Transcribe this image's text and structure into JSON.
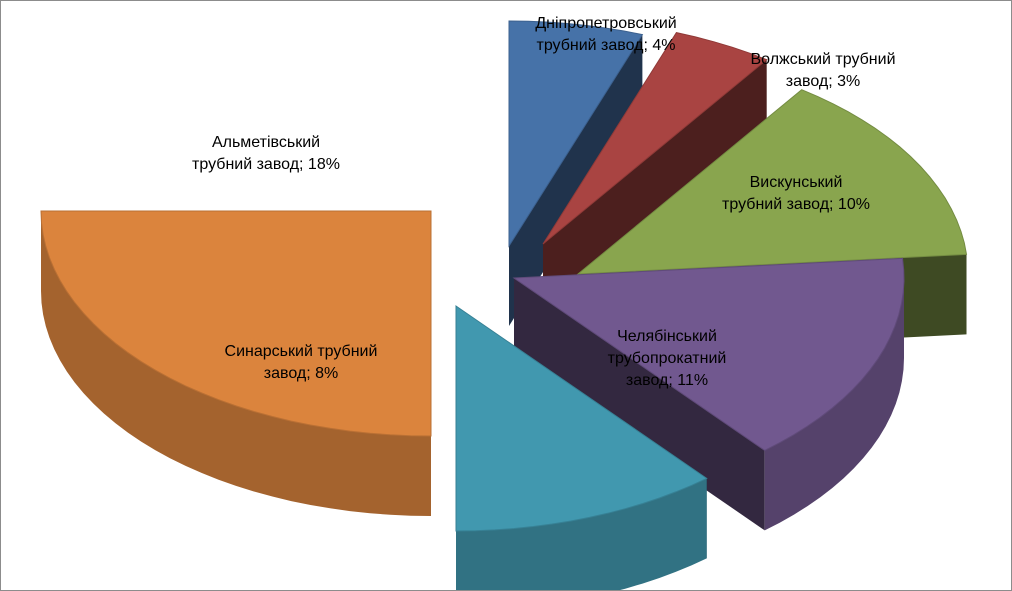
{
  "chart_data": {
    "type": "pie",
    "title": "",
    "subtitle": "",
    "legend": "none",
    "three_d": true,
    "exploded": true,
    "slices": [
      {
        "name": "Дніпропетровський трубний завод",
        "value": 4,
        "label_lines": [
          "Дніпропетровський",
          "трубний завод; 4%"
        ],
        "color": "#4672a8"
      },
      {
        "name": "Волжський трубний завод",
        "value": 3,
        "label_lines": [
          "Волжський трубний",
          "завод; 3%"
        ],
        "color": "#a94442"
      },
      {
        "name": "Вискунський трубний завод",
        "value": 10,
        "label_lines": [
          "Вискунський",
          "трубний завод; 10%"
        ],
        "color": "#89a54e"
      },
      {
        "name": "Челябінський трубопрокатний завод",
        "value": 11,
        "label_lines": [
          "Челябінський",
          "трубопрокатний",
          "завод; 11%"
        ],
        "color": "#71588f"
      },
      {
        "name": "Синарський трубний завод",
        "value": 8,
        "label_lines": [
          "Синарський трубний",
          "завод; 8%"
        ],
        "color": "#4198af"
      },
      {
        "name": "Альметівський трубний завод",
        "value": 18,
        "label_lines": [
          "Альметівський",
          "трубний завод; 18%"
        ],
        "color": "#db843d"
      }
    ]
  }
}
